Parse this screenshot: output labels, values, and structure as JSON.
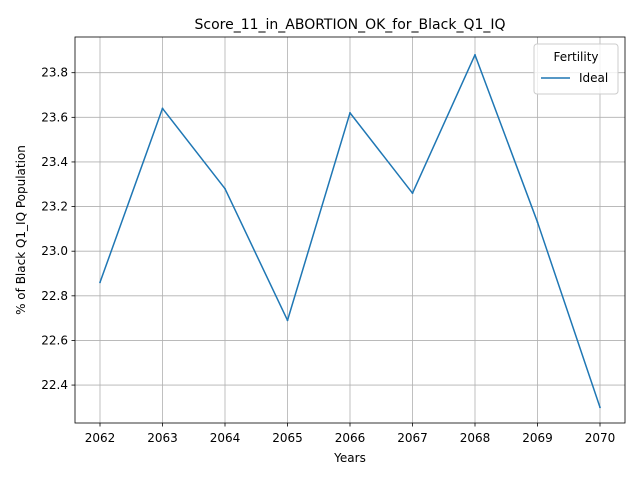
{
  "chart_data": {
    "type": "line",
    "title": "Score_11_in_ABORTION_OK_for_Black_Q1_IQ",
    "xlabel": "Years",
    "ylabel": "% of Black Q1_IQ Population",
    "x": [
      2062,
      2063,
      2064,
      2065,
      2066,
      2067,
      2068,
      2069,
      2070
    ],
    "x_ticks": [
      "2062",
      "2063",
      "2064",
      "2065",
      "2066",
      "2067",
      "2068",
      "2069",
      "2070"
    ],
    "y_ticks": [
      "22.4",
      "22.6",
      "22.8",
      "23.0",
      "23.2",
      "23.4",
      "23.6",
      "23.8"
    ],
    "xlim": [
      2061.6,
      2070.4
    ],
    "ylim": [
      22.23,
      23.96
    ],
    "grid": true,
    "legend": {
      "title": "Fertility",
      "placement": "top-right"
    },
    "series": [
      {
        "name": "Ideal",
        "color": "#1f77b4",
        "values": [
          22.86,
          23.64,
          23.28,
          22.69,
          23.62,
          23.26,
          23.88,
          23.13,
          22.3
        ]
      }
    ]
  }
}
